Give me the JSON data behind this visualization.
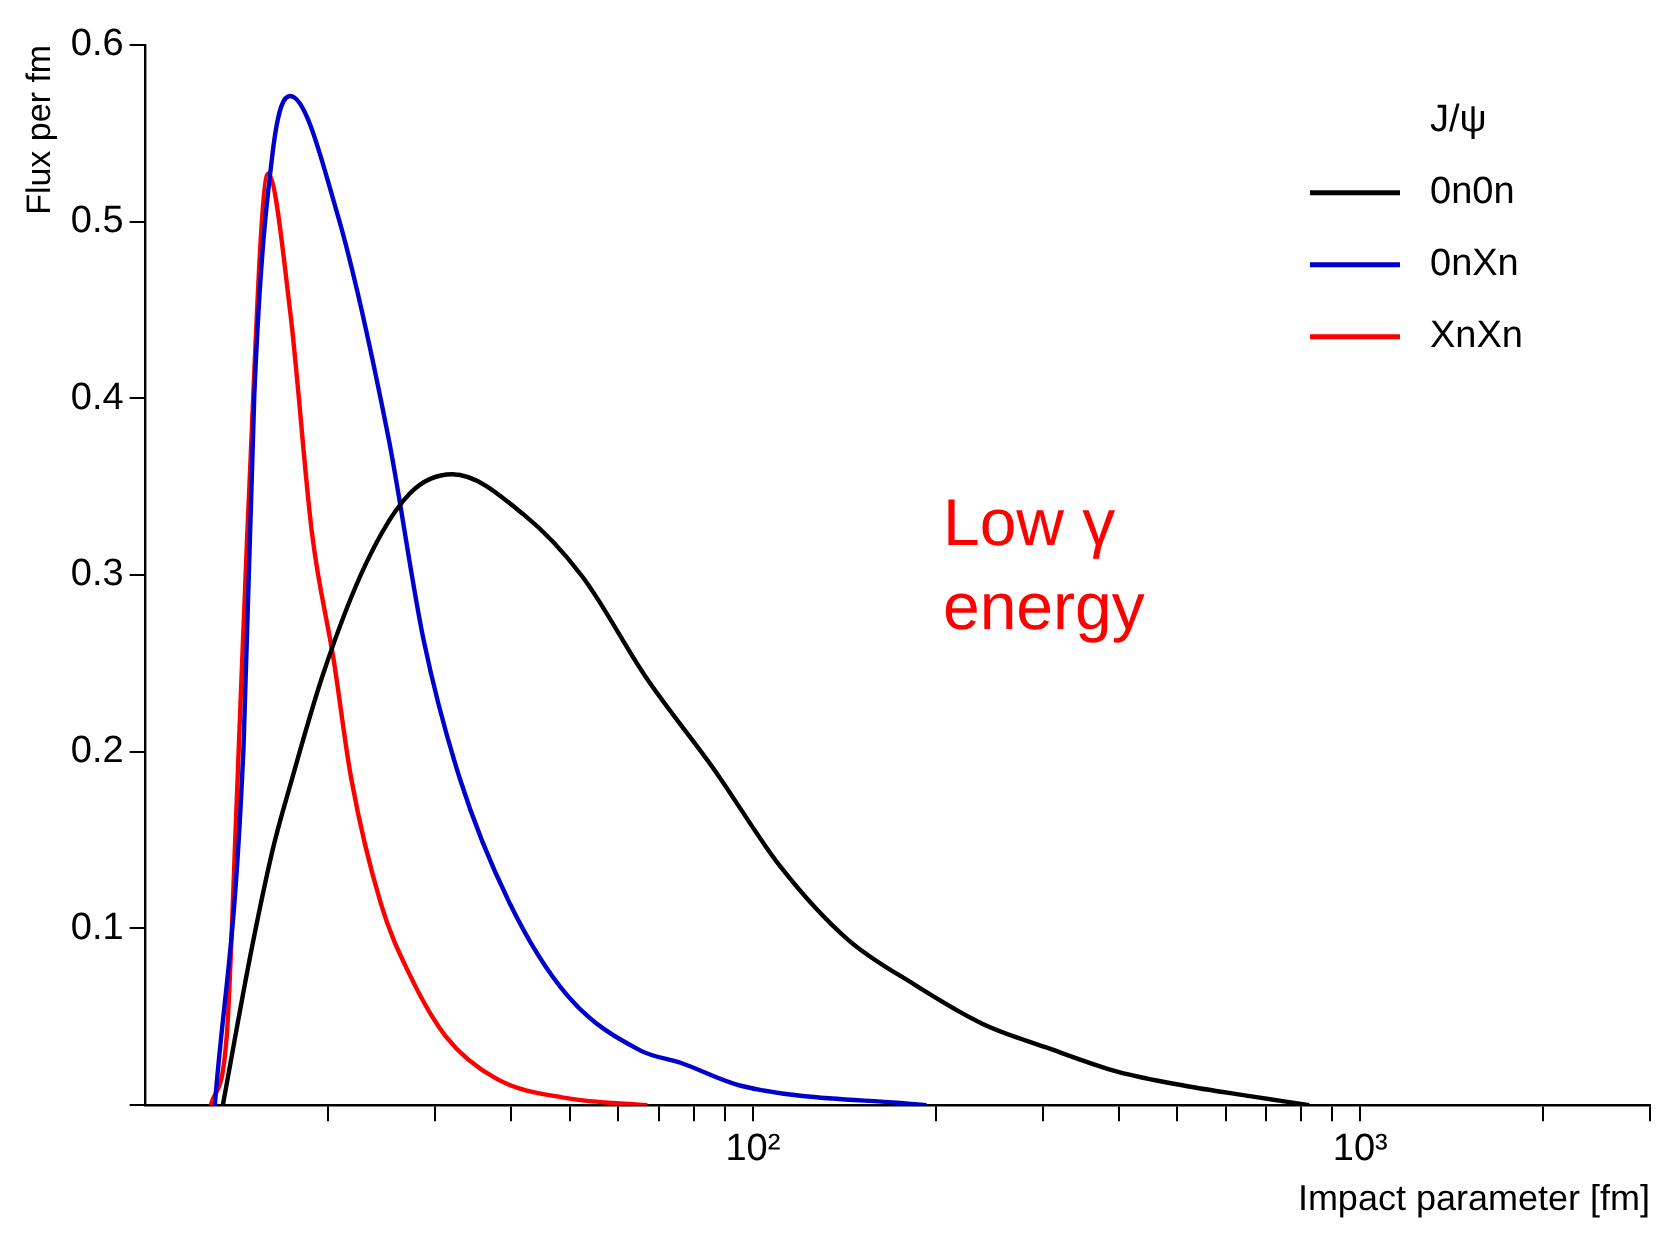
{
  "chart_data": {
    "type": "line",
    "xlabel": "Impact parameter [fm]",
    "ylabel": "Flux per fm",
    "legend_title": "J/ψ",
    "legend": "top right",
    "log": "x",
    "grid": false,
    "marker": "none",
    "line_style": "solid",
    "xlim": [
      10,
      3000
    ],
    "ylim": [
      0,
      0.6
    ],
    "xticks": [
      {
        "value": 20,
        "label": null
      },
      {
        "value": 30,
        "label": null
      },
      {
        "value": 40,
        "label": null
      },
      {
        "value": 50,
        "label": null
      },
      {
        "value": 60,
        "label": null
      },
      {
        "value": 70,
        "label": null
      },
      {
        "value": 80,
        "label": null
      },
      {
        "value": 90,
        "label": null
      },
      {
        "value": 100,
        "label": "10²"
      },
      {
        "value": 200,
        "label": null
      },
      {
        "value": 300,
        "label": null
      },
      {
        "value": 400,
        "label": null
      },
      {
        "value": 500,
        "label": null
      },
      {
        "value": 600,
        "label": null
      },
      {
        "value": 700,
        "label": null
      },
      {
        "value": 800,
        "label": null
      },
      {
        "value": 900,
        "label": null
      },
      {
        "value": 1000,
        "label": "10³"
      },
      {
        "value": 2000,
        "label": null
      },
      {
        "value": 3000,
        "label": null
      }
    ],
    "yticks": [
      {
        "value": 0,
        "label": null
      },
      0.1,
      0.2,
      0.3,
      0.4,
      0.5,
      0.6
    ],
    "annotations": [
      "Low γ\nenergy"
    ],
    "series": [
      {
        "name": "0n0n",
        "color": "#000000",
        "x": [
          13.4,
          14.9,
          16.2,
          17.3,
          19.6,
          23.1,
          27.2,
          32,
          42,
          52.4,
          66.7,
          86.3,
          111,
          143,
          185,
          239,
          308,
          398,
          514,
          662,
          824
        ],
        "values": [
          0,
          0.086,
          0.145,
          0.181,
          0.244,
          0.307,
          0.346,
          0.357,
          0.334,
          0.299,
          0.242,
          0.19,
          0.135,
          0.094,
          0.068,
          0.046,
          0.032,
          0.019,
          0.011,
          0.005,
          0
        ]
      },
      {
        "name": "0nXn",
        "color": "#0000cc",
        "x": [
          13,
          14.5,
          15.1,
          16.2,
          17.3,
          20.7,
          25.1,
          28.7,
          32.9,
          39.8,
          49.5,
          65.2,
          76,
          95.5,
          193
        ],
        "values": [
          0,
          0.204,
          0.402,
          0.54,
          0.571,
          0.504,
          0.378,
          0.263,
          0.185,
          0.114,
          0.062,
          0.031,
          0.024,
          0.011,
          0
        ]
      },
      {
        "name": "XnXn",
        "color": "#ff0000",
        "x": [
          12.8,
          13.6,
          14.1,
          14.7,
          15.9,
          17.3,
          18.8,
          20.4,
          21.8,
          24.4,
          27.2,
          31.2,
          37.8,
          49.4,
          67
        ],
        "values": [
          0,
          0.039,
          0.165,
          0.323,
          0.527,
          0.449,
          0.323,
          0.252,
          0.185,
          0.114,
          0.074,
          0.039,
          0.015,
          0.004,
          0
        ]
      }
    ]
  }
}
